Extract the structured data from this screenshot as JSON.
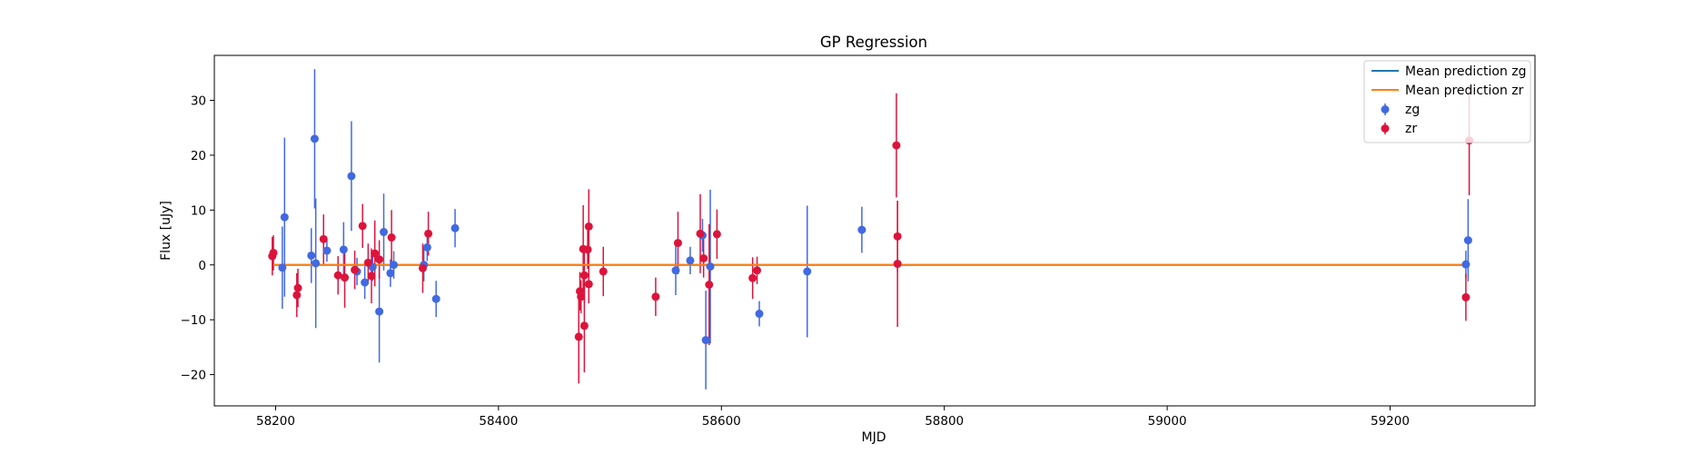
{
  "chart_data": {
    "type": "scatter",
    "title": "GP Regression",
    "xlabel": "MJD",
    "ylabel": "Flux [uJy]",
    "xlim": [
      58145,
      59330
    ],
    "ylim": [
      -25.7,
      38.2
    ],
    "xticks": [
      58200,
      58400,
      58600,
      58800,
      59000,
      59200
    ],
    "yticks": [
      -20,
      -10,
      0,
      10,
      20,
      30
    ],
    "grid": false,
    "legend": "top-right",
    "lines": [
      {
        "name": "Mean prediction zg",
        "color": "#1f77b4",
        "x": [
          58198,
          59270
        ],
        "y": [
          0,
          0
        ]
      },
      {
        "name": "Mean prediction zr",
        "color": "#ff7f0e",
        "x": [
          58198,
          59270
        ],
        "y": [
          0,
          0
        ]
      }
    ],
    "series": [
      {
        "name": "zg",
        "color": "#4169e1",
        "points": [
          {
            "x": 58206,
            "y": -0.5,
            "err": 7.5
          },
          {
            "x": 58208,
            "y": 8.7,
            "err": 14.5
          },
          {
            "x": 58232,
            "y": 1.7,
            "err": 5.0
          },
          {
            "x": 58235,
            "y": 23.0,
            "err": 12.7
          },
          {
            "x": 58236,
            "y": 0.3,
            "err": 11.8
          },
          {
            "x": 58246,
            "y": 2.6,
            "err": 2.0
          },
          {
            "x": 58261,
            "y": 2.8,
            "err": 5.0
          },
          {
            "x": 58268,
            "y": 16.2,
            "err": 10.0
          },
          {
            "x": 58273,
            "y": -1.2,
            "err": 2.5
          },
          {
            "x": 58280,
            "y": -3.2,
            "err": 3.0
          },
          {
            "x": 58287,
            "y": -0.4,
            "err": 2.5
          },
          {
            "x": 58293,
            "y": -8.5,
            "err": 9.3
          },
          {
            "x": 58297,
            "y": 6.0,
            "err": 7.0
          },
          {
            "x": 58303,
            "y": -1.5,
            "err": 2.5
          },
          {
            "x": 58306,
            "y": 0.0,
            "err": 2.5
          },
          {
            "x": 58333,
            "y": 0.0,
            "err": 3.0
          },
          {
            "x": 58336,
            "y": 3.2,
            "err": 2.5
          },
          {
            "x": 58344,
            "y": -6.2,
            "err": 3.3
          },
          {
            "x": 58361,
            "y": 6.7,
            "err": 3.5
          },
          {
            "x": 58559,
            "y": -1.0,
            "err": 4.5
          },
          {
            "x": 58572,
            "y": 0.8,
            "err": 2.5
          },
          {
            "x": 58583,
            "y": 5.4,
            "err": 3.0
          },
          {
            "x": 58586,
            "y": -13.7,
            "err": 9.0
          },
          {
            "x": 58590,
            "y": -0.3,
            "err": 14.0
          },
          {
            "x": 58634,
            "y": -8.9,
            "err": 2.3
          },
          {
            "x": 58677,
            "y": -1.2,
            "err": 12.0
          },
          {
            "x": 58726,
            "y": 6.4,
            "err": 4.2
          },
          {
            "x": 59268,
            "y": 0.1,
            "err": 2.5
          },
          {
            "x": 59270,
            "y": 4.5,
            "err": 7.5
          }
        ]
      },
      {
        "name": "zr",
        "color": "#dc143c",
        "points": [
          {
            "x": 58197,
            "y": 1.6,
            "err": 3.5
          },
          {
            "x": 58198,
            "y": 2.2,
            "err": 3.2
          },
          {
            "x": 58219,
            "y": -5.5,
            "err": 4.0
          },
          {
            "x": 58220,
            "y": -4.2,
            "err": 3.5
          },
          {
            "x": 58243,
            "y": 4.7,
            "err": 4.5
          },
          {
            "x": 58256,
            "y": -1.9,
            "err": 3.5
          },
          {
            "x": 58262,
            "y": -2.3,
            "err": 5.5
          },
          {
            "x": 58271,
            "y": -0.9,
            "err": 3.5
          },
          {
            "x": 58278,
            "y": 7.1,
            "err": 4.0
          },
          {
            "x": 58283,
            "y": 0.4,
            "err": 3.5
          },
          {
            "x": 58286,
            "y": -2.0,
            "err": 5.0
          },
          {
            "x": 58289,
            "y": 2.1,
            "err": 6.0
          },
          {
            "x": 58293,
            "y": 1.0,
            "err": 3.5
          },
          {
            "x": 58304,
            "y": 5.0,
            "err": 5.0
          },
          {
            "x": 58332,
            "y": -0.6,
            "err": 4.5
          },
          {
            "x": 58337,
            "y": 5.7,
            "err": 4.0
          },
          {
            "x": 58472,
            "y": -13.1,
            "err": 8.5
          },
          {
            "x": 58473,
            "y": -4.8,
            "err": 3.5
          },
          {
            "x": 58474,
            "y": -5.8,
            "err": 3.0
          },
          {
            "x": 58476,
            "y": 2.9,
            "err": 8.0
          },
          {
            "x": 58477,
            "y": -11.1,
            "err": 8.5
          },
          {
            "x": 58477,
            "y": -1.9,
            "err": 5.0
          },
          {
            "x": 58480,
            "y": 2.8,
            "err": 3.5
          },
          {
            "x": 58481,
            "y": 7.0,
            "err": 6.8
          },
          {
            "x": 58481,
            "y": -3.5,
            "err": 3.5
          },
          {
            "x": 58494,
            "y": -1.2,
            "err": 4.5
          },
          {
            "x": 58541,
            "y": -5.8,
            "err": 3.5
          },
          {
            "x": 58561,
            "y": 4.0,
            "err": 5.7
          },
          {
            "x": 58581,
            "y": 5.7,
            "err": 7.2
          },
          {
            "x": 58584,
            "y": 1.2,
            "err": 3.5
          },
          {
            "x": 58589,
            "y": -3.6,
            "err": 11.0
          },
          {
            "x": 58596,
            "y": 5.6,
            "err": 4.5
          },
          {
            "x": 58628,
            "y": -2.4,
            "err": 3.8
          },
          {
            "x": 58632,
            "y": -1.0,
            "err": 2.5
          },
          {
            "x": 58757,
            "y": 21.8,
            "err": 9.5
          },
          {
            "x": 58758,
            "y": 5.2,
            "err": 6.5
          },
          {
            "x": 58758,
            "y": 0.2,
            "err": 11.5
          },
          {
            "x": 59268,
            "y": -5.9,
            "err": 4.3
          },
          {
            "x": 59271,
            "y": 22.7,
            "err": 10.0
          }
        ]
      }
    ]
  }
}
